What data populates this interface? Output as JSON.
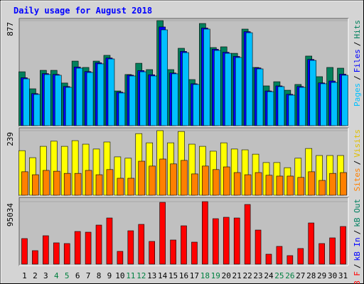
{
  "chart_data": {
    "type": "bar",
    "title": "Daily usage for August 2018",
    "categories": [
      "1",
      "2",
      "3",
      "4",
      "5",
      "6",
      "7",
      "8",
      "9",
      "10",
      "11",
      "12",
      "13",
      "14",
      "15",
      "16",
      "17",
      "18",
      "19",
      "20",
      "21",
      "22",
      "23",
      "24",
      "25",
      "26",
      "27",
      "28",
      "29",
      "30",
      "31"
    ],
    "category_colors": [
      "#000000",
      "#000000",
      "#000000",
      "#008040",
      "#008040",
      "#000000",
      "#000000",
      "#000000",
      "#000000",
      "#000000",
      "#008040",
      "#008040",
      "#000000",
      "#000000",
      "#000000",
      "#000000",
      "#000000",
      "#008040",
      "#008040",
      "#000000",
      "#000000",
      "#000000",
      "#000000",
      "#000000",
      "#008040",
      "#008040",
      "#000000",
      "#000000",
      "#000000",
      "#000000",
      "#000000"
    ],
    "legend_separator": "/",
    "panels": [
      {
        "ylim": [
          0,
          877
        ],
        "yticks": [
          877
        ],
        "legend": [
          {
            "name": "Pages",
            "color": "#00c0ff"
          },
          {
            "name": "Files",
            "color": "#0000ff"
          },
          {
            "name": "Hits",
            "color": "#00805c"
          }
        ],
        "series": [
          {
            "color": "#00805c",
            "values": [
              450,
              308,
              462,
              462,
              356,
              539,
              486,
              539,
              587,
              290,
              427,
              521,
              468,
              877,
              468,
              646,
              385,
              853,
              652,
              658,
              604,
              806,
              486,
              332,
              367,
              296,
              344,
              581,
              409,
              486,
              480
            ]
          },
          {
            "color": "#0000ff",
            "values": [
              400,
              268,
              435,
              428,
              327,
              490,
              452,
              525,
              565,
              280,
              422,
              460,
              425,
              824,
              440,
              620,
              350,
              815,
              638,
              613,
              578,
              785,
              482,
              290,
              332,
              262,
              327,
              553,
              357,
              373,
              430
            ]
          },
          {
            "color": "#00c0ff",
            "values": [
              391,
              261,
              427,
              421,
              320,
              480,
              444,
              516,
              557,
              273,
              415,
              450,
              415,
              800,
              433,
              610,
              344,
              806,
              628,
              604,
              569,
              776,
              474,
              284,
              326,
              255,
              320,
              545,
              350,
              361,
              421
            ]
          }
        ]
      },
      {
        "ylim": [
          0,
          239
        ],
        "yticks": [
          239
        ],
        "legend": [
          {
            "name": "Sites",
            "color": "#ff8000"
          },
          {
            "name": "Visits",
            "color": "#e0c000"
          }
        ],
        "series": [
          {
            "color": "#ffff00",
            "values": [
              165,
              139,
              181,
              200,
              181,
              202,
              189,
              171,
              197,
              142,
              137,
              228,
              194,
              239,
              194,
              236,
              189,
              181,
              163,
              194,
              171,
              168,
              152,
              121,
              121,
              102,
              137,
              173,
              147,
              147,
              147
            ]
          },
          {
            "color": "#ff8000",
            "values": [
              87,
              76,
              92,
              89,
              81,
              81,
              92,
              76,
              95,
              63,
              63,
              126,
              108,
              134,
              116,
              129,
              79,
              108,
              95,
              105,
              84,
              76,
              84,
              74,
              71,
              71,
              66,
              87,
              55,
              81,
              84
            ]
          }
        ]
      },
      {
        "ylim": [
          0,
          95034
        ],
        "yticks": [
          95034
        ],
        "legend": [
          {
            "name": "kB F",
            "color": "#ff0000"
          },
          {
            "name": "kB In",
            "color": "#0000ff"
          },
          {
            "name": "kB Out",
            "color": "#008060"
          }
        ],
        "series": [
          {
            "color": "#ff0000",
            "values": [
              38880,
              20520,
              43200,
              32400,
              31320,
              49680,
              48600,
              59400,
              70200,
              19440,
              50760,
              60480,
              34560,
              93960,
              36720,
              58320,
              33480,
              95034,
              69120,
              71280,
              70200,
              90720,
              51840,
              15120,
              27000,
              12960,
              23760,
              62640,
              31320,
              39960,
              57240
            ]
          }
        ]
      }
    ]
  }
}
